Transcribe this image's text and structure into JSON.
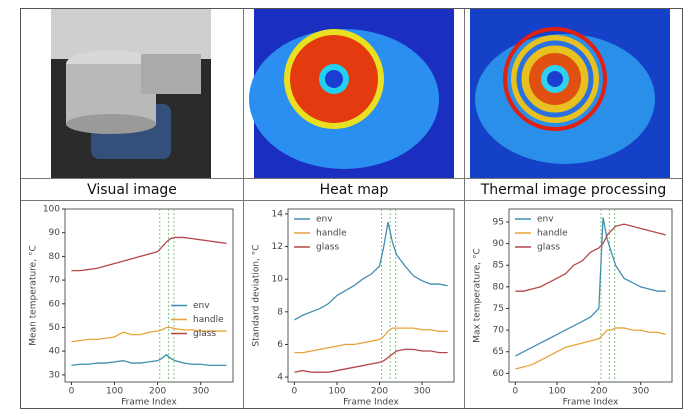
{
  "captions": [
    "Visual image",
    "Heat map",
    "Thermal image processing"
  ],
  "chart_data": [
    {
      "type": "line",
      "xlabel": "Frame Index",
      "ylabel": "Mean temperature, °C",
      "x": [
        0,
        20,
        40,
        60,
        80,
        100,
        120,
        140,
        160,
        180,
        200,
        210,
        220,
        230,
        240,
        260,
        280,
        300,
        320,
        340,
        360
      ],
      "xlim": [
        -15,
        375
      ],
      "xticks": [
        0,
        100,
        200,
        300
      ],
      "ylim": [
        27,
        100
      ],
      "yticks": [
        30,
        40,
        50,
        60,
        70,
        80,
        90,
        100
      ],
      "legend": "center right",
      "vlines": [
        205,
        225,
        238
      ],
      "vline_color": "#6fbf6f",
      "series": [
        {
          "name": "env",
          "color": "#3f8fb0",
          "values": [
            34,
            34.5,
            34.5,
            35,
            35,
            35.5,
            36,
            35,
            35,
            35.5,
            36,
            37,
            38.5,
            37,
            36,
            35,
            34.5,
            34.5,
            34,
            34,
            34
          ]
        },
        {
          "name": "handle",
          "color": "#e8a33c",
          "values": [
            44,
            44.5,
            45,
            45,
            45.5,
            46,
            48,
            47,
            47,
            48,
            48.5,
            49,
            50,
            50,
            49.5,
            49,
            49,
            48.5,
            48.5,
            48.5,
            48.5
          ]
        },
        {
          "name": "glass",
          "color": "#b5474b",
          "values": [
            74,
            74,
            74.5,
            75,
            76,
            77,
            78,
            79,
            80,
            81,
            82,
            84,
            86,
            87.5,
            88,
            88,
            87.5,
            87,
            86.5,
            86,
            85.5
          ]
        }
      ]
    },
    {
      "type": "line",
      "xlabel": "Frame Index",
      "ylabel": "Standard deviation, °C",
      "x": [
        0,
        20,
        40,
        60,
        80,
        100,
        120,
        140,
        160,
        180,
        200,
        210,
        220,
        230,
        240,
        260,
        280,
        300,
        320,
        340,
        360
      ],
      "xlim": [
        -15,
        375
      ],
      "xticks": [
        0,
        100,
        200,
        300
      ],
      "ylim": [
        3.7,
        14.3
      ],
      "yticks": [
        4,
        6,
        8,
        10,
        12,
        14
      ],
      "legend": "upper left",
      "vlines": [
        205,
        225,
        238
      ],
      "vline_color": "#6fbf6f",
      "series": [
        {
          "name": "env",
          "color": "#3f8fb0",
          "values": [
            7.5,
            7.8,
            8,
            8.2,
            8.5,
            9,
            9.3,
            9.6,
            10,
            10.3,
            10.8,
            12,
            13.5,
            12.3,
            11.5,
            10.8,
            10.2,
            9.9,
            9.7,
            9.7,
            9.6
          ]
        },
        {
          "name": "handle",
          "color": "#e8a33c",
          "values": [
            5.5,
            5.5,
            5.6,
            5.7,
            5.8,
            5.9,
            6,
            6,
            6.1,
            6.2,
            6.3,
            6.5,
            6.8,
            7,
            7,
            7,
            7,
            6.9,
            6.9,
            6.8,
            6.8
          ]
        },
        {
          "name": "glass",
          "color": "#b5474b",
          "values": [
            4.3,
            4.4,
            4.3,
            4.3,
            4.3,
            4.4,
            4.5,
            4.6,
            4.7,
            4.8,
            4.9,
            5,
            5.2,
            5.4,
            5.6,
            5.7,
            5.7,
            5.6,
            5.6,
            5.5,
            5.5
          ]
        }
      ]
    },
    {
      "type": "line",
      "xlabel": "Frame Index",
      "ylabel": "Max temperature, °C",
      "x": [
        0,
        20,
        40,
        60,
        80,
        100,
        120,
        140,
        160,
        180,
        200,
        210,
        220,
        230,
        240,
        260,
        280,
        300,
        320,
        340,
        360
      ],
      "xlim": [
        -15,
        375
      ],
      "xticks": [
        0,
        100,
        200,
        300
      ],
      "ylim": [
        58,
        98
      ],
      "yticks": [
        60,
        65,
        70,
        75,
        80,
        85,
        90,
        95
      ],
      "legend": "upper left",
      "vlines": [
        205,
        225,
        238
      ],
      "vline_color": "#6fbf6f",
      "series": [
        {
          "name": "env",
          "color": "#3f8fb0",
          "values": [
            64,
            65,
            66,
            67,
            68,
            69,
            70,
            71,
            72,
            73,
            75,
            96,
            91,
            88,
            85,
            82,
            81,
            80,
            79.5,
            79,
            79
          ]
        },
        {
          "name": "handle",
          "color": "#e8a33c",
          "values": [
            61,
            61.5,
            62,
            63,
            64,
            65,
            66,
            66.5,
            67,
            67.5,
            68,
            69,
            70,
            70,
            70.5,
            70.5,
            70,
            70,
            69.5,
            69.5,
            69
          ]
        },
        {
          "name": "glass",
          "color": "#b5474b",
          "values": [
            79,
            79,
            79.5,
            80,
            81,
            82,
            83,
            85,
            86,
            88,
            89,
            90,
            92,
            93,
            94,
            94.5,
            94,
            93.5,
            93,
            92.5,
            92
          ]
        }
      ]
    }
  ]
}
